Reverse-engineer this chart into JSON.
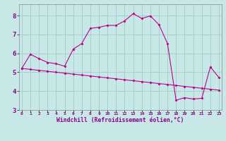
{
  "bg_color": "#c8e8e8",
  "grid_color": "#a8cece",
  "line_color": "#bb0088",
  "xlim": [
    -0.3,
    23.3
  ],
  "ylim": [
    3.0,
    8.6
  ],
  "yticks": [
    3,
    4,
    5,
    6,
    7,
    8
  ],
  "xticks": [
    0,
    1,
    2,
    3,
    4,
    5,
    6,
    7,
    8,
    9,
    10,
    11,
    12,
    13,
    14,
    15,
    16,
    17,
    18,
    19,
    20,
    21,
    22,
    23
  ],
  "xlabel": "Windchill (Refroidissement éolien,°C)",
  "curve1_x": [
    0,
    1,
    2,
    3,
    4,
    5,
    6,
    7,
    8,
    9,
    10,
    11,
    12,
    13,
    14,
    15,
    16,
    17,
    18,
    19,
    20,
    21,
    22,
    23
  ],
  "curve1_y": [
    5.2,
    5.95,
    5.72,
    5.52,
    5.45,
    5.32,
    6.22,
    6.52,
    7.32,
    7.38,
    7.48,
    7.48,
    7.72,
    8.1,
    7.85,
    7.98,
    7.52,
    6.52,
    3.52,
    3.65,
    3.58,
    3.62,
    5.28,
    4.72
  ],
  "curve2_x": [
    0,
    1,
    2,
    3,
    4,
    5,
    6,
    7,
    8,
    9,
    10,
    11,
    12,
    13,
    14,
    15,
    16,
    17,
    18,
    19,
    20,
    21,
    22,
    23
  ],
  "curve2_y": [
    5.2,
    5.15,
    5.1,
    5.05,
    5.0,
    4.95,
    4.9,
    4.85,
    4.8,
    4.75,
    4.7,
    4.65,
    4.6,
    4.55,
    4.5,
    4.45,
    4.4,
    4.35,
    4.3,
    4.25,
    4.2,
    4.15,
    4.1,
    4.05
  ]
}
